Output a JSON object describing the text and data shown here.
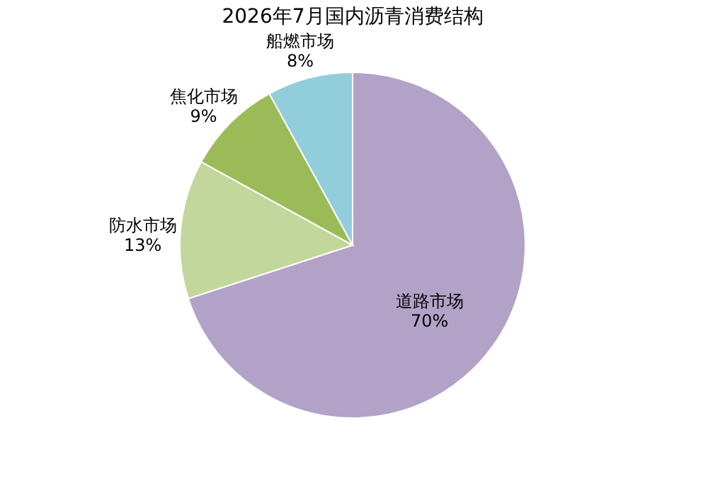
{
  "chart_data": {
    "type": "pie",
    "title": "2026年7月国内沥青消费结构",
    "categories": [
      "道路市场",
      "防水市场",
      "焦化市场",
      "船燃市场"
    ],
    "values": [
      70,
      13,
      9,
      8
    ],
    "value_labels": [
      "70%",
      "13%",
      "9%",
      "8%"
    ],
    "colors": [
      "#b3a2c7",
      "#c3d69b",
      "#9bbb59",
      "#92cddc"
    ],
    "legend": false
  }
}
